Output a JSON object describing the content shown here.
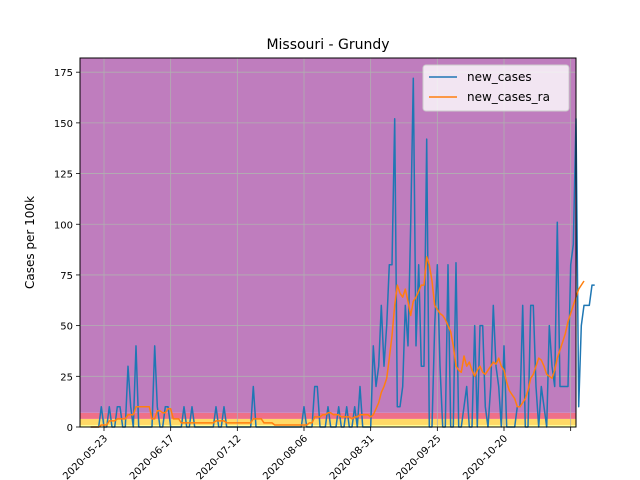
{
  "chart_data": {
    "type": "line",
    "title": "Missouri - Grundy",
    "xlabel": "",
    "ylabel": "Cases per 100k",
    "x_start": "2020-05-18",
    "x_step_days": 1,
    "xlim": [
      "2020-05-14",
      "2020-11-16"
    ],
    "xticks": [
      "2020-05-23",
      "2020-06-17",
      "2020-07-12",
      "2020-08-06",
      "2020-08-31",
      "2020-09-25",
      "2020-10-20"
    ],
    "ylim": [
      0,
      182
    ],
    "yticks": [
      0,
      25,
      50,
      75,
      100,
      125,
      150,
      175
    ],
    "grid": true,
    "legend_position": "top-right",
    "bands": [
      {
        "from": 0,
        "to": 1,
        "color": "#ffff99"
      },
      {
        "from": 1,
        "to": 4,
        "color": "#ffd966"
      },
      {
        "from": 4,
        "to": 7,
        "color": "#ef7088"
      },
      {
        "from": 7,
        "to": 182,
        "color": "#bf7dbe"
      }
    ],
    "series": [
      {
        "name": "new_cases",
        "color": "#1f77b4",
        "values": [
          0,
          0,
          0,
          0,
          10,
          0,
          0,
          10,
          0,
          0,
          10,
          10,
          0,
          0,
          30,
          10,
          0,
          40,
          0,
          0,
          0,
          0,
          0,
          0,
          40,
          10,
          0,
          0,
          10,
          10,
          0,
          0,
          0,
          0,
          0,
          10,
          0,
          0,
          10,
          0,
          0,
          0,
          0,
          0,
          0,
          0,
          0,
          10,
          0,
          0,
          10,
          0,
          0,
          0,
          0,
          0,
          0,
          0,
          0,
          0,
          0,
          20,
          0,
          0,
          0,
          0,
          0,
          0,
          0,
          0,
          0,
          0,
          0,
          0,
          0,
          0,
          0,
          0,
          0,
          0,
          10,
          0,
          0,
          0,
          20,
          20,
          0,
          0,
          0,
          10,
          0,
          0,
          0,
          10,
          0,
          0,
          10,
          0,
          0,
          10,
          0,
          20,
          0,
          0,
          0,
          0,
          40,
          20,
          30,
          60,
          30,
          50,
          80,
          80,
          152,
          10,
          10,
          20,
          60,
          40,
          100,
          172,
          40,
          80,
          30,
          30,
          142,
          0,
          0,
          50,
          80,
          30,
          0,
          0,
          80,
          0,
          0,
          81,
          0,
          0,
          10,
          20,
          0,
          0,
          50,
          0,
          50,
          50,
          10,
          0,
          20,
          60,
          30,
          20,
          0,
          40,
          0,
          0,
          0,
          0,
          10,
          10,
          60,
          0,
          0,
          60,
          60,
          20,
          0,
          20,
          10,
          0,
          50,
          30,
          20,
          101,
          20,
          20,
          20,
          20,
          80,
          90,
          152,
          10,
          50,
          60,
          60,
          60,
          70,
          70
        ]
      },
      {
        "name": "new_cases_ra",
        "color": "#ff7f0e",
        "values": [
          0,
          0,
          0,
          0,
          1,
          1,
          1,
          3,
          3,
          3,
          4,
          4,
          4,
          4,
          6,
          6,
          6,
          10,
          10,
          10,
          10,
          10,
          10,
          4,
          4,
          8,
          8,
          7,
          7,
          9,
          9,
          4,
          4,
          4,
          2,
          2,
          2,
          2,
          2,
          2,
          2,
          2,
          2,
          2,
          2,
          2,
          2,
          3,
          3,
          3,
          3,
          2,
          2,
          2,
          2,
          2,
          2,
          2,
          2,
          2,
          2,
          4,
          4,
          4,
          4,
          2,
          2,
          2,
          2,
          1,
          1,
          1,
          1,
          1,
          1,
          1,
          1,
          1,
          1,
          1,
          1,
          1,
          2,
          2,
          5,
          5,
          5,
          6,
          6,
          7,
          7,
          6,
          6,
          6,
          5,
          5,
          5,
          5,
          4,
          5,
          5,
          6,
          6,
          6,
          6,
          5,
          6,
          9,
          12,
          17,
          20,
          24,
          34,
          45,
          60,
          70,
          66,
          64,
          68,
          62,
          55,
          62,
          64,
          67,
          70,
          70,
          84,
          80,
          72,
          60,
          58,
          56,
          55,
          53,
          50,
          47,
          40,
          30,
          28,
          27,
          35,
          30,
          32,
          28,
          25,
          28,
          30,
          27,
          26,
          28,
          30,
          32,
          31,
          34,
          30,
          28,
          22,
          18,
          16,
          14,
          10,
          10,
          12,
          14,
          18,
          24,
          26,
          30,
          34,
          33,
          30,
          26,
          25,
          24,
          28,
          34,
          38,
          42,
          46,
          52,
          56,
          60,
          64,
          68,
          70,
          72
        ]
      }
    ]
  }
}
